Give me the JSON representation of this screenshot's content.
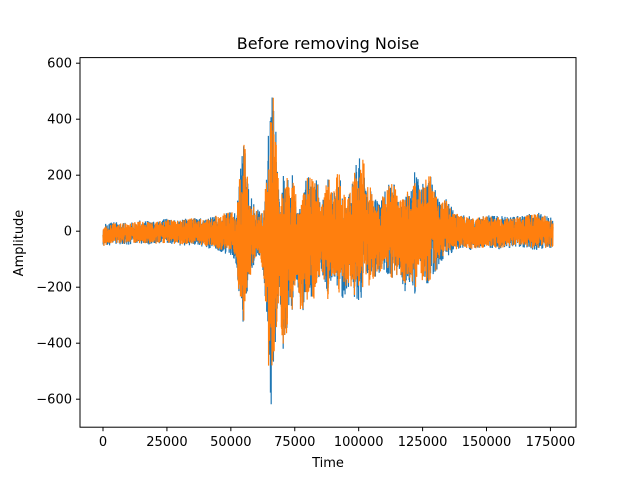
{
  "chart_data": {
    "type": "line",
    "title": "Before removing Noise",
    "xlabel": "Time",
    "ylabel": "Amplitude",
    "xlim": [
      -9000,
      185000
    ],
    "ylim": [
      -700,
      620
    ],
    "grid": false,
    "xticks": [
      0,
      25000,
      50000,
      75000,
      100000,
      125000,
      150000,
      175000
    ],
    "xtick_labels": [
      "0",
      "25000",
      "50000",
      "75000",
      "100000",
      "125000",
      "150000",
      "175000"
    ],
    "yticks": [
      600,
      400,
      200,
      0,
      -200,
      -400,
      -600
    ],
    "ytick_labels": [
      "600",
      "400",
      "200",
      "0",
      "−200",
      "−400",
      "−600"
    ],
    "series": [
      {
        "color": "#1f77b4",
        "x_range": [
          0,
          176000
        ],
        "envelope_x": [
          0,
          5000,
          10000,
          15000,
          20000,
          25000,
          30000,
          35000,
          40000,
          45000,
          50000,
          52000,
          54000,
          55000,
          56000,
          57000,
          58000,
          60000,
          62000,
          63000,
          64000,
          65000,
          66000,
          67000,
          68000,
          69000,
          70000,
          71000,
          72000,
          73000,
          74000,
          75000,
          76000,
          77000,
          78000,
          80000,
          82000,
          84000,
          85000,
          86000,
          88000,
          90000,
          92000,
          94000,
          96000,
          98000,
          100000,
          102000,
          103000,
          104000,
          106000,
          108000,
          110000,
          112000,
          114000,
          116000,
          118000,
          120000,
          122000,
          124000,
          126000,
          128000,
          130000,
          132000,
          134000,
          136000,
          138000,
          140000,
          145000,
          150000,
          155000,
          160000,
          165000,
          170000,
          176000
        ],
        "envelope_upper": [
          25,
          35,
          30,
          40,
          35,
          45,
          40,
          50,
          45,
          60,
          80,
          60,
          250,
          320,
          280,
          150,
          120,
          80,
          70,
          90,
          250,
          400,
          550,
          450,
          300,
          120,
          140,
          250,
          280,
          150,
          220,
          160,
          100,
          110,
          140,
          210,
          190,
          180,
          90,
          120,
          210,
          130,
          230,
          140,
          120,
          200,
          290,
          270,
          140,
          180,
          120,
          100,
          140,
          170,
          180,
          120,
          140,
          150,
          230,
          160,
          200,
          210,
          150,
          100,
          120,
          90,
          70,
          60,
          50,
          60,
          55,
          50,
          60,
          70,
          50
        ],
        "envelope_lower": [
          -60,
          -45,
          -50,
          -45,
          -50,
          -45,
          -55,
          -50,
          -60,
          -70,
          -90,
          -120,
          -310,
          -330,
          -280,
          -200,
          -150,
          -100,
          -120,
          -180,
          -350,
          -560,
          -640,
          -500,
          -350,
          -200,
          -420,
          -450,
          -350,
          -250,
          -300,
          -200,
          -200,
          -280,
          -310,
          -250,
          -260,
          -200,
          -160,
          -170,
          -250,
          -150,
          -220,
          -250,
          -200,
          -240,
          -250,
          -230,
          -150,
          -200,
          -170,
          -150,
          -140,
          -170,
          -180,
          -140,
          -220,
          -180,
          -230,
          -200,
          -200,
          -180,
          -150,
          -110,
          -100,
          -80,
          -70,
          -60,
          -70,
          -60,
          -65,
          -60,
          -60,
          -70,
          -60
        ]
      },
      {
        "color": "#ff7f0e",
        "x_range": [
          0,
          176000
        ],
        "envelope_x": [
          0,
          5000,
          10000,
          15000,
          20000,
          25000,
          30000,
          35000,
          40000,
          45000,
          50000,
          52000,
          54000,
          55000,
          56000,
          57000,
          58000,
          60000,
          62000,
          63000,
          64000,
          65000,
          66000,
          67000,
          68000,
          69000,
          70000,
          71000,
          72000,
          73000,
          74000,
          75000,
          76000,
          77000,
          78000,
          80000,
          82000,
          84000,
          85000,
          86000,
          88000,
          90000,
          92000,
          94000,
          96000,
          98000,
          100000,
          102000,
          103000,
          104000,
          106000,
          108000,
          110000,
          112000,
          114000,
          116000,
          118000,
          120000,
          122000,
          124000,
          126000,
          128000,
          130000,
          132000,
          134000,
          136000,
          138000,
          140000,
          145000,
          150000,
          155000,
          160000,
          165000,
          170000,
          176000
        ],
        "envelope_upper": [
          20,
          30,
          28,
          38,
          32,
          42,
          38,
          48,
          42,
          58,
          76,
          56,
          245,
          318,
          276,
          146,
          116,
          76,
          66,
          86,
          246,
          395,
          555,
          445,
          296,
          116,
          136,
          246,
          276,
          146,
          216,
          156,
          96,
          106,
          136,
          206,
          186,
          176,
          86,
          116,
          206,
          126,
          226,
          136,
          116,
          196,
          286,
          266,
          136,
          176,
          116,
          96,
          136,
          166,
          176,
          116,
          136,
          146,
          226,
          156,
          196,
          206,
          146,
          96,
          116,
          86,
          66,
          56,
          46,
          56,
          50,
          46,
          56,
          66,
          46
        ],
        "envelope_lower": [
          -55,
          -42,
          -46,
          -42,
          -46,
          -42,
          -50,
          -46,
          -56,
          -66,
          -86,
          -116,
          -305,
          -326,
          -276,
          -196,
          -146,
          -96,
          -116,
          -176,
          -346,
          -555,
          -635,
          -495,
          -346,
          -196,
          -416,
          -446,
          -346,
          -246,
          -296,
          -196,
          -196,
          -276,
          -306,
          -246,
          -256,
          -196,
          -156,
          -166,
          -246,
          -146,
          -216,
          -246,
          -196,
          -236,
          -246,
          -226,
          -146,
          -196,
          -166,
          -146,
          -136,
          -166,
          -176,
          -136,
          -216,
          -176,
          -226,
          -196,
          -196,
          -176,
          -146,
          -106,
          -96,
          -76,
          -66,
          -56,
          -66,
          -56,
          -60,
          -56,
          -56,
          -66,
          -56
        ]
      }
    ]
  }
}
